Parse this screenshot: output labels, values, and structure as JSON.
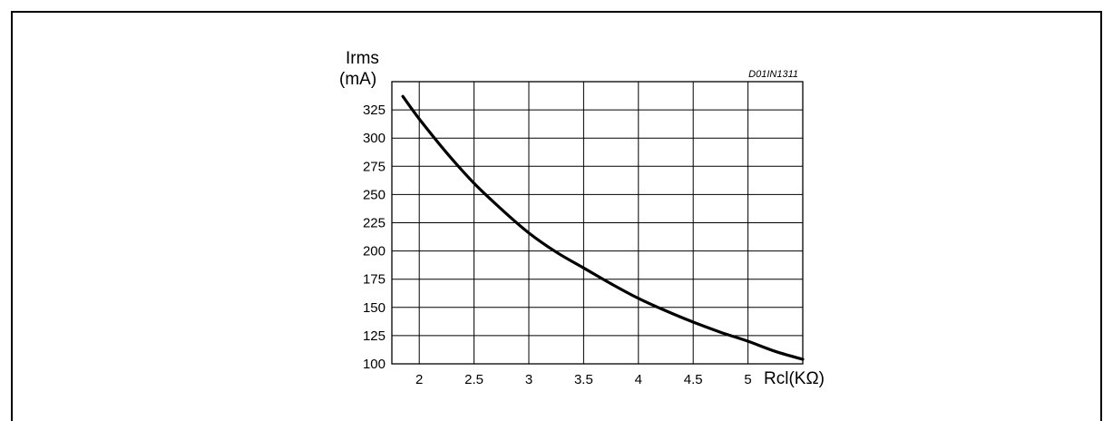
{
  "chart_data": {
    "type": "line",
    "title": "",
    "figure_code": "D01IN1311",
    "ylabel_line1": "Irms",
    "ylabel_line2": "(mA)",
    "xlabel": "Rcl(KΩ)",
    "xlim": [
      1.75,
      5.5
    ],
    "ylim": [
      100,
      350
    ],
    "x_ticks": [
      2,
      2.5,
      3,
      3.5,
      4,
      4.5,
      5
    ],
    "x_tick_labels": [
      "2",
      "2.5",
      "3",
      "3.5",
      "4",
      "4.5",
      "5"
    ],
    "y_ticks": [
      100,
      125,
      150,
      175,
      200,
      225,
      250,
      275,
      300,
      325
    ],
    "y_tick_labels": [
      "100",
      "125",
      "150",
      "175",
      "200",
      "225",
      "250",
      "275",
      "300",
      "325"
    ],
    "grid": true,
    "series": [
      {
        "x": [
          1.85,
          2.0,
          2.25,
          2.5,
          2.75,
          3.0,
          3.25,
          3.5,
          3.75,
          4.0,
          4.25,
          4.5,
          4.75,
          5.0,
          5.25,
          5.5
        ],
        "y": [
          337,
          317,
          287,
          260,
          237,
          216,
          199,
          185,
          171,
          158,
          147,
          137,
          128,
          120,
          111,
          104
        ]
      }
    ]
  },
  "colors": {
    "line": "#000000",
    "grid": "#000000",
    "background": "#ffffff"
  }
}
